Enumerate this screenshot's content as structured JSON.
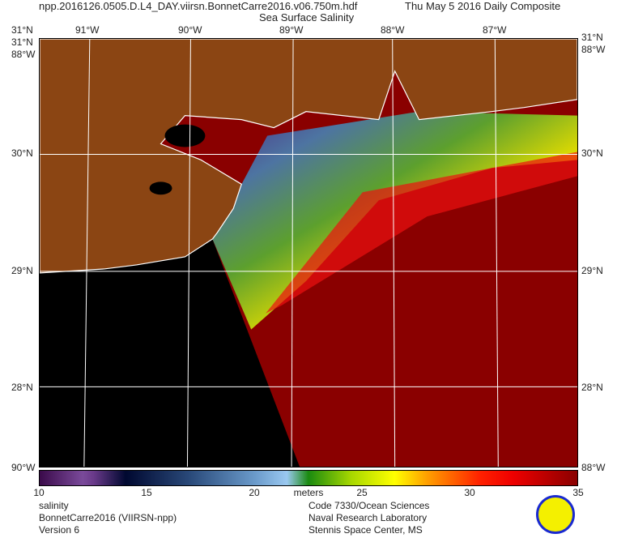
{
  "header": {
    "filename": "npp.2016126.0505.D.L4_DAY.viirsn.BonnetCarre2016.v06.750m.hdf",
    "date": "Thu May  5 2016 Daily Composite",
    "title": "Sea Surface Salinity"
  },
  "axes": {
    "top_lon": [
      "91°W",
      "90°W",
      "89°W",
      "88°W",
      "87°W"
    ],
    "left_lat": [
      "31°N",
      "30°N",
      "29°N",
      "28°N"
    ],
    "right_lat": [
      "31°N",
      "30°N",
      "29°N",
      "28°N"
    ],
    "corner_top_left": "31°N",
    "corner_left_top": "88°W",
    "corner_right_top": "88°W",
    "corner_left_bottom": "90°W",
    "corner_right_bottom": "88°W"
  },
  "colorbar": {
    "ticks": [
      "10",
      "15",
      "20",
      "25",
      "30",
      "35"
    ],
    "unit": "meters",
    "min": 10,
    "max": 35
  },
  "footer": {
    "left": [
      "salinity",
      "BonnetCarre2016 (VIIRSN-npp)",
      "Version 6"
    ],
    "right": [
      "Code 7330/Ocean Sciences",
      "Naval Research Laboratory",
      "Stennis Space Center, MS"
    ]
  },
  "colors": {
    "land": "#8b4513",
    "nodata": "#000000",
    "high_salinity": "#8a0000"
  }
}
